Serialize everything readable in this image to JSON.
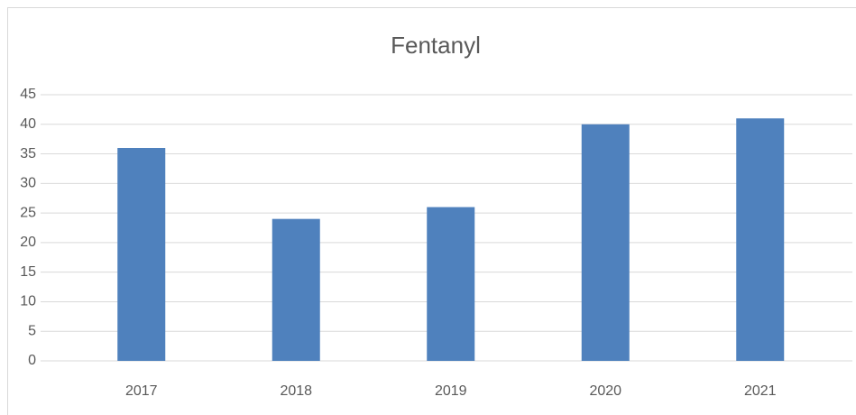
{
  "chart_data": {
    "type": "bar",
    "title": "Fentanyl",
    "categories": [
      "2017",
      "2018",
      "2019",
      "2020",
      "2021"
    ],
    "values": [
      36,
      24,
      26,
      40,
      41
    ],
    "color": "#4f81bd",
    "ylim": [
      0,
      45
    ],
    "yticks": [
      0,
      5,
      10,
      15,
      20,
      25,
      30,
      35,
      40,
      45
    ],
    "grid": true
  }
}
